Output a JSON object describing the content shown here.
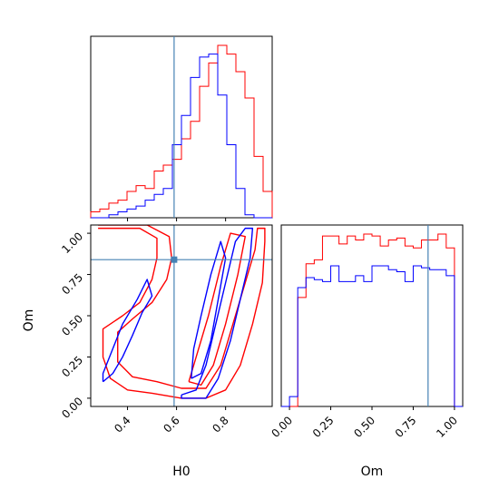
{
  "chart_data": {
    "type": "corner",
    "parameters": [
      "H0",
      "Om"
    ],
    "truths": {
      "H0": 0.59,
      "Om": 0.84
    },
    "truth_color": "#4682b4",
    "series": [
      {
        "color": "#ff0000"
      },
      {
        "color": "#0000ff"
      }
    ],
    "panels": [
      {
        "id": "hist-H0",
        "type": "histogram",
        "x_range": [
          0.25,
          0.99
        ],
        "xticks": [
          "0.4",
          "0.6",
          "0.8"
        ],
        "xtick_values": [
          0.4,
          0.6,
          0.8
        ],
        "bin_edges": [
          0.25,
          0.287,
          0.324,
          0.361,
          0.398,
          0.435,
          0.472,
          0.509,
          0.546,
          0.583,
          0.62,
          0.657,
          0.694,
          0.731,
          0.768,
          0.805,
          0.842,
          0.879,
          0.916,
          0.953,
          0.99
        ],
        "series_counts": [
          [
            2,
            3,
            5,
            6,
            9,
            11,
            10,
            16,
            18,
            20,
            27,
            33,
            45,
            53,
            59,
            56,
            50,
            41,
            21,
            9
          ],
          [
            0,
            0,
            1,
            2,
            3,
            4,
            6,
            8,
            10,
            25,
            35,
            48,
            55,
            56,
            42,
            25,
            10,
            1,
            0,
            0
          ]
        ]
      },
      {
        "id": "hist-Om",
        "type": "histogram",
        "x_range": [
          -0.05,
          1.05
        ],
        "xticks": [
          "0.00",
          "0.25",
          "0.50",
          "0.75",
          "1.00"
        ],
        "xtick_values": [
          0.0,
          0.25,
          0.5,
          0.75,
          1.0
        ],
        "xlabel": "Om",
        "bin_edges": [
          -0.05,
          0.0,
          0.05,
          0.1,
          0.15,
          0.2,
          0.25,
          0.3,
          0.35,
          0.4,
          0.45,
          0.5,
          0.55,
          0.6,
          0.65,
          0.7,
          0.75,
          0.8,
          0.85,
          0.9,
          0.95,
          1.0,
          1.05
        ],
        "series_counts": [
          [
            0,
            0,
            55,
            72,
            74,
            86,
            86,
            82,
            86,
            84,
            87,
            86,
            81,
            84,
            85,
            81,
            80,
            84,
            84,
            87,
            80,
            0
          ],
          [
            0,
            5,
            60,
            65,
            64,
            63,
            71,
            63,
            63,
            66,
            63,
            71,
            71,
            69,
            68,
            63,
            71,
            70,
            69,
            69,
            66,
            0
          ]
        ]
      },
      {
        "id": "contour-H0-Om",
        "type": "contour",
        "x_range": [
          0.25,
          0.99
        ],
        "y_range": [
          -0.05,
          1.05
        ],
        "xticks": [
          "0.4",
          "0.6",
          "0.8"
        ],
        "xtick_values": [
          0.4,
          0.6,
          0.8
        ],
        "yticks": [
          "0.00",
          "0.25",
          "0.50",
          "0.75",
          "1.00"
        ],
        "ytick_values": [
          0.0,
          0.25,
          0.5,
          0.75,
          1.0
        ],
        "xlabel": "H0",
        "ylabel": "Om",
        "contours": [
          {
            "series": 0,
            "points": [
              [
                0.28,
                1.03
              ],
              [
                0.45,
                1.03
              ],
              [
                0.52,
                0.97
              ],
              [
                0.52,
                0.85
              ],
              [
                0.5,
                0.72
              ],
              [
                0.45,
                0.58
              ],
              [
                0.38,
                0.5
              ],
              [
                0.3,
                0.42
              ],
              [
                0.3,
                0.25
              ],
              [
                0.33,
                0.12
              ],
              [
                0.4,
                0.05
              ],
              [
                0.5,
                0.03
              ],
              [
                0.62,
                0.0
              ],
              [
                0.72,
                0.0
              ],
              [
                0.8,
                0.05
              ],
              [
                0.86,
                0.2
              ],
              [
                0.91,
                0.45
              ],
              [
                0.95,
                0.7
              ],
              [
                0.96,
                0.95
              ],
              [
                0.96,
                1.03
              ],
              [
                0.93,
                1.03
              ],
              [
                0.92,
                0.9
              ],
              [
                0.88,
                0.7
              ],
              [
                0.83,
                0.45
              ],
              [
                0.78,
                0.2
              ],
              [
                0.72,
                0.06
              ],
              [
                0.62,
                0.06
              ],
              [
                0.52,
                0.1
              ],
              [
                0.42,
                0.13
              ],
              [
                0.36,
                0.22
              ],
              [
                0.36,
                0.4
              ],
              [
                0.42,
                0.48
              ],
              [
                0.5,
                0.58
              ],
              [
                0.56,
                0.72
              ],
              [
                0.58,
                0.85
              ],
              [
                0.57,
                0.98
              ],
              [
                0.48,
                1.05
              ],
              [
                0.28,
                1.05
              ]
            ]
          },
          {
            "series": 0,
            "points": [
              [
                0.65,
                0.1
              ],
              [
                0.7,
                0.08
              ],
              [
                0.75,
                0.2
              ],
              [
                0.8,
                0.45
              ],
              [
                0.85,
                0.75
              ],
              [
                0.88,
                0.98
              ],
              [
                0.82,
                1.0
              ],
              [
                0.78,
                0.8
              ],
              [
                0.73,
                0.5
              ],
              [
                0.68,
                0.25
              ],
              [
                0.65,
                0.1
              ]
            ]
          },
          {
            "series": 1,
            "points": [
              [
                0.3,
                0.1
              ],
              [
                0.34,
                0.15
              ],
              [
                0.38,
                0.25
              ],
              [
                0.42,
                0.38
              ],
              [
                0.46,
                0.52
              ],
              [
                0.5,
                0.62
              ],
              [
                0.48,
                0.72
              ],
              [
                0.44,
                0.6
              ],
              [
                0.38,
                0.45
              ],
              [
                0.34,
                0.3
              ],
              [
                0.3,
                0.15
              ],
              [
                0.3,
                0.1
              ]
            ]
          },
          {
            "series": 1,
            "points": [
              [
                0.62,
                0.02
              ],
              [
                0.68,
                0.05
              ],
              [
                0.72,
                0.2
              ],
              [
                0.76,
                0.45
              ],
              [
                0.8,
                0.7
              ],
              [
                0.84,
                0.95
              ],
              [
                0.88,
                1.03
              ],
              [
                0.91,
                1.03
              ],
              [
                0.9,
                0.85
              ],
              [
                0.86,
                0.6
              ],
              [
                0.82,
                0.35
              ],
              [
                0.77,
                0.12
              ],
              [
                0.72,
                0.0
              ],
              [
                0.62,
                0.0
              ],
              [
                0.62,
                0.02
              ]
            ]
          },
          {
            "series": 1,
            "points": [
              [
                0.66,
                0.12
              ],
              [
                0.7,
                0.15
              ],
              [
                0.74,
                0.35
              ],
              [
                0.77,
                0.6
              ],
              [
                0.8,
                0.85
              ],
              [
                0.78,
                0.95
              ],
              [
                0.74,
                0.75
              ],
              [
                0.7,
                0.5
              ],
              [
                0.67,
                0.3
              ],
              [
                0.66,
                0.12
              ]
            ]
          }
        ]
      }
    ]
  }
}
